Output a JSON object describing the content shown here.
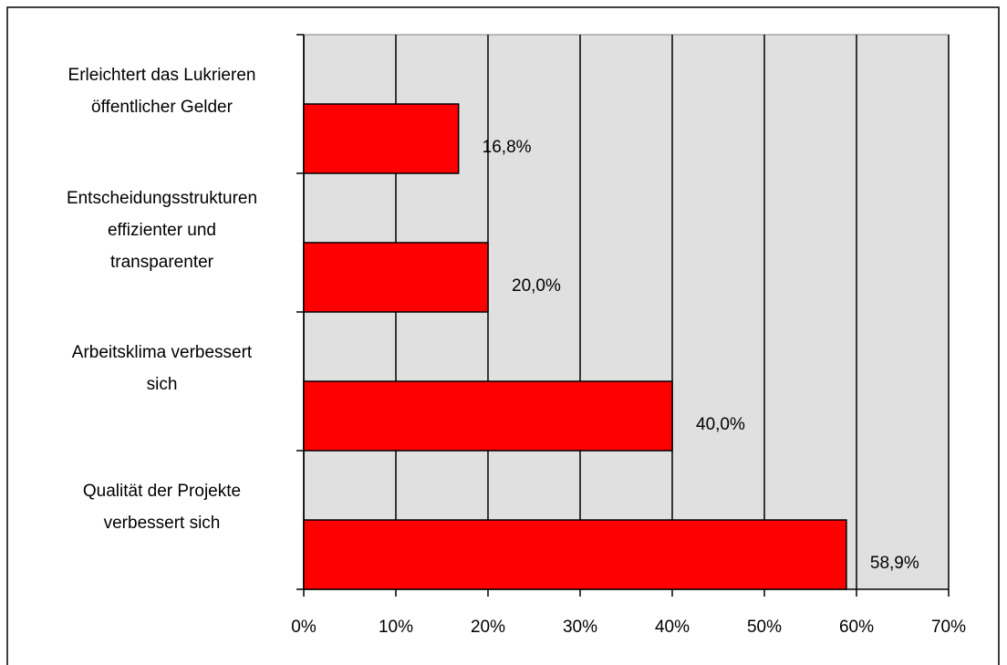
{
  "chart_data": {
    "type": "bar",
    "orientation": "horizontal",
    "categories": [
      "Erleichtert das Lukrieren\nöffentlicher Gelder",
      "Entscheidungsstrukturen\neffizienter und\ntransparenter",
      "Arbeitsklima verbessert\nsich",
      "Qualität der Projekte\nverbessert sich"
    ],
    "values": [
      16.8,
      20.0,
      40.0,
      58.9
    ],
    "value_labels": [
      "16,8%",
      "20,0%",
      "40,0%",
      "58,9%"
    ],
    "color": "#ff0000",
    "plot_background": "#e0e0e0",
    "xlim": [
      0,
      70
    ],
    "xticks": [
      {
        "value": 0,
        "label": "0%"
      },
      {
        "value": 10,
        "label": "10%"
      },
      {
        "value": 20,
        "label": "20%"
      },
      {
        "value": 30,
        "label": "30%"
      },
      {
        "value": 40,
        "label": "40%"
      },
      {
        "value": 50,
        "label": "50%"
      },
      {
        "value": 60,
        "label": "60%"
      },
      {
        "value": 70,
        "label": "70%"
      }
    ],
    "grid": true
  }
}
